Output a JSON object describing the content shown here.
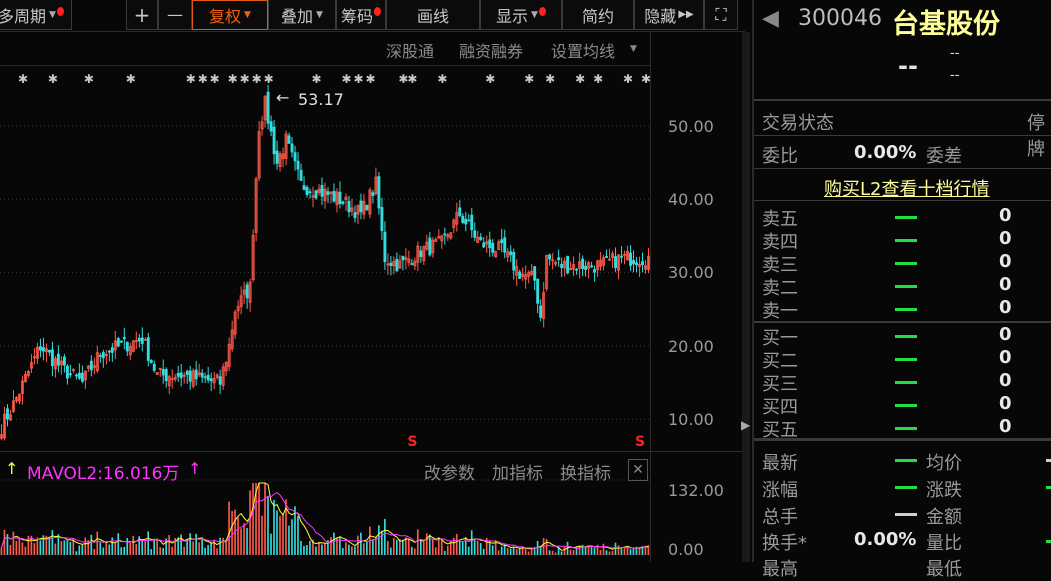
{
  "toolbar": {
    "period": "多周期",
    "plus": "+",
    "minus": "—",
    "fuquan": "复权",
    "overlay": "叠加",
    "chips": "筹码",
    "draw": "画线",
    "display": "显示",
    "simple": "简约",
    "hide": "隐藏"
  },
  "links": {
    "sgt": "深股通",
    "margin": "融资融券",
    "ma": "设置均线"
  },
  "chart_data": {
    "type": "candlestick",
    "price_axis": [
      "50.00",
      "40.00",
      "30.00",
      "20.00",
      "10.00"
    ],
    "ylim": [
      7,
      58
    ],
    "max_label": "53.17",
    "max_price": 53.17,
    "close_keypoints": [
      [
        0,
        9
      ],
      [
        4,
        12
      ],
      [
        13,
        20
      ],
      [
        20,
        17
      ],
      [
        27,
        15
      ],
      [
        33,
        19
      ],
      [
        40,
        20
      ],
      [
        47,
        21
      ],
      [
        52,
        16
      ],
      [
        60,
        16
      ],
      [
        73,
        15
      ],
      [
        76,
        20
      ],
      [
        78,
        25
      ],
      [
        83,
        28
      ],
      [
        84,
        36
      ],
      [
        86,
        50
      ],
      [
        88,
        53
      ],
      [
        92,
        45
      ],
      [
        95,
        48
      ],
      [
        100,
        42
      ],
      [
        107,
        41
      ],
      [
        113,
        40
      ],
      [
        120,
        38
      ],
      [
        125,
        42
      ],
      [
        128,
        32
      ],
      [
        133,
        31
      ],
      [
        140,
        33
      ],
      [
        147,
        34
      ],
      [
        153,
        38
      ],
      [
        160,
        34
      ],
      [
        167,
        33
      ],
      [
        173,
        30
      ],
      [
        178,
        29
      ],
      [
        180,
        24
      ],
      [
        182,
        32
      ],
      [
        187,
        31
      ],
      [
        200,
        31
      ],
      [
        207,
        32
      ],
      [
        216,
        32
      ]
    ],
    "volume": {
      "indicator": "MAVOL2:16.016万",
      "axis": [
        "132.00",
        "0.00"
      ]
    },
    "colors": {
      "up": "#ff5a4a",
      "down": "#33dddd",
      "ma1": "#ffff33",
      "ma2": "#ff33ff"
    }
  },
  "volume_panel": {
    "label": "MAVOL2:16.016万",
    "edit": "改参数",
    "add": "加指标",
    "swap": "换指标"
  },
  "right": {
    "code": "300046",
    "name": "台基股份",
    "price": "--",
    "chg1": "--",
    "chg2": "--",
    "status_label": "交易状态",
    "status_value": "停牌",
    "wb_label": "委比",
    "wb_value": "0.00%",
    "wc_label": "委差",
    "l2": "购买L2查看十档行情",
    "sells": [
      {
        "l": "卖五",
        "v": "0"
      },
      {
        "l": "卖四",
        "v": "0"
      },
      {
        "l": "卖三",
        "v": "0"
      },
      {
        "l": "卖二",
        "v": "0"
      },
      {
        "l": "卖一",
        "v": "0"
      }
    ],
    "buys": [
      {
        "l": "买一",
        "v": "0"
      },
      {
        "l": "买二",
        "v": "0"
      },
      {
        "l": "买三",
        "v": "0"
      },
      {
        "l": "买四",
        "v": "0"
      },
      {
        "l": "买五",
        "v": "0"
      }
    ],
    "stats": {
      "latest": "最新",
      "avg": "均价",
      "pct": "涨幅",
      "chg": "涨跌",
      "vol": "总手",
      "amt": "金额",
      "turn": "换手*",
      "turn_v": "0.00%",
      "vr": "量比",
      "high": "最高",
      "low": "最低"
    }
  }
}
